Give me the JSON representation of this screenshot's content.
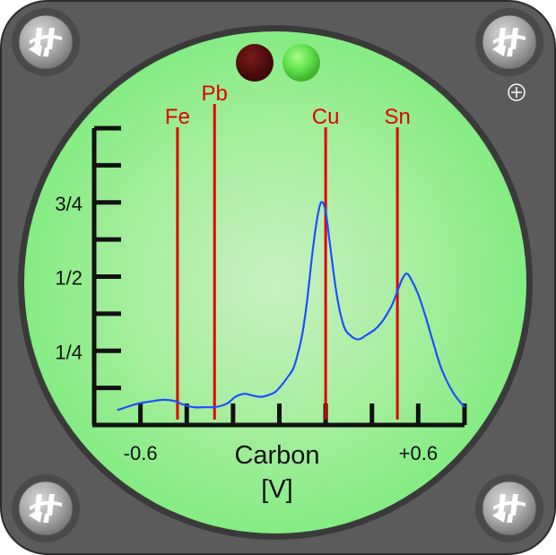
{
  "chart_data": {
    "type": "line",
    "xlabel": "Carbon",
    "xunit": "[V]",
    "xlim": [
      -0.8,
      0.8
    ],
    "ylim": [
      0,
      1
    ],
    "x_tick_labels": [
      {
        "value": -0.6,
        "label": "-0.6"
      },
      {
        "value": 0.6,
        "label": "+0.6"
      }
    ],
    "y_tick_labels": [
      {
        "value": 0.25,
        "label": "1/4"
      },
      {
        "value": 0.5,
        "label": "1/2"
      },
      {
        "value": 0.75,
        "label": "3/4"
      }
    ],
    "minor_ticks": {
      "x_step": 0.2,
      "y_step": 0.125
    },
    "series": [
      {
        "color": "#1f4fff",
        "x": [
          -0.7,
          -0.62,
          -0.55,
          -0.5,
          -0.45,
          -0.42,
          -0.37,
          -0.32,
          -0.28,
          -0.25,
          -0.22,
          -0.19,
          -0.15,
          -0.12,
          -0.08,
          -0.05,
          -0.02,
          0.0,
          0.03,
          0.06,
          0.08,
          0.1,
          0.12,
          0.14,
          0.16,
          0.18,
          0.2,
          0.22,
          0.25,
          0.28,
          0.31,
          0.33,
          0.35,
          0.37,
          0.39,
          0.41,
          0.43,
          0.45,
          0.47,
          0.49,
          0.51,
          0.53,
          0.55,
          0.57,
          0.6,
          0.63,
          0.66,
          0.7,
          0.75,
          0.8
        ],
        "y": [
          0.05,
          0.07,
          0.08,
          0.085,
          0.08,
          0.07,
          0.06,
          0.06,
          0.06,
          0.065,
          0.075,
          0.095,
          0.105,
          0.1,
          0.095,
          0.1,
          0.11,
          0.125,
          0.155,
          0.19,
          0.24,
          0.31,
          0.42,
          0.56,
          0.68,
          0.75,
          0.72,
          0.6,
          0.43,
          0.33,
          0.3,
          0.29,
          0.29,
          0.3,
          0.31,
          0.32,
          0.335,
          0.355,
          0.38,
          0.41,
          0.45,
          0.49,
          0.51,
          0.49,
          0.44,
          0.37,
          0.29,
          0.19,
          0.11,
          0.06
        ]
      }
    ],
    "annotations": [
      {
        "label": "Fe",
        "x": -0.44,
        "color": "#e00000"
      },
      {
        "label": "Pb",
        "x": -0.28,
        "color": "#e00000"
      },
      {
        "label": "Cu",
        "x": 0.2,
        "color": "#e00000"
      },
      {
        "label": "Sn",
        "x": 0.51,
        "color": "#e00000"
      }
    ]
  },
  "indicators": [
    {
      "name": "red-indicator-lamp",
      "color": "#5a0d0d",
      "state": "off"
    },
    {
      "name": "green-indicator-lamp",
      "color": "#5ee04a",
      "state": "on"
    }
  ],
  "icons": {
    "screw": "screw-icon",
    "crosshair": "crosshair-icon"
  },
  "colors": {
    "panel": "#5b5b5b",
    "bezel": "#3a3a3a",
    "screen": "#8ff08f",
    "axis": "#111111",
    "annotation": "#e00000",
    "curve": "#1f4fff"
  }
}
